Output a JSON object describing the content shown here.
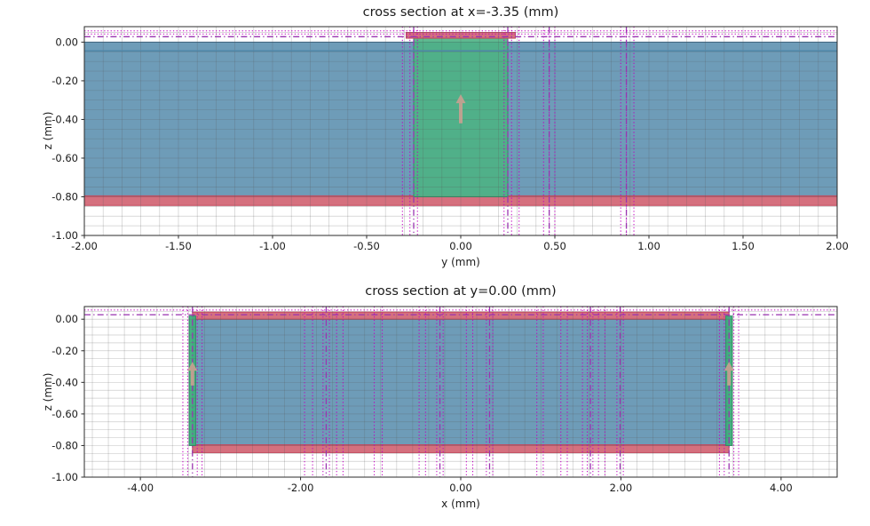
{
  "chart_data": [
    {
      "type": "cross_section_mesh_plot",
      "title": "cross section at x=-3.35 (mm)",
      "xlabel": "y (mm)",
      "ylabel": "z (mm)",
      "xlim": [
        -2.0,
        2.0
      ],
      "zlim": [
        -1.0,
        0.08
      ],
      "xticks": [
        -2.0,
        -1.5,
        -1.0,
        -0.5,
        0.0,
        0.5,
        1.0,
        1.5,
        2.0
      ],
      "zticks": [
        0.0,
        -0.2,
        -0.4,
        -0.6,
        -0.8,
        -1.0
      ],
      "grid": {
        "dx": 0.1,
        "dz": 0.05,
        "visible": true
      },
      "rects": [
        {
          "name": "substrate",
          "x0": -2.0,
          "x1": 2.0,
          "z0": -0.8,
          "z1": 0.0,
          "fill": "#4e86a8",
          "stroke": "#39688a",
          "opacity": 0.82
        },
        {
          "name": "bottom-metal",
          "x0": -2.0,
          "x1": 2.0,
          "z0": -0.845,
          "z1": -0.795,
          "fill": "#d06070",
          "stroke": "#c04a5e",
          "opacity": 0.9
        },
        {
          "name": "center-conductor",
          "x0": -0.25,
          "x1": 0.25,
          "z0": -0.8,
          "z1": 0.02,
          "fill": "#4cb384",
          "stroke": "#2f9066",
          "opacity": 0.9
        },
        {
          "name": "top-metal",
          "x0": -0.29,
          "x1": 0.29,
          "z0": 0.02,
          "z1": 0.05,
          "fill": "#d06070",
          "stroke": "#c04a5e",
          "opacity": 0.9
        }
      ],
      "hlines": [
        {
          "z": 0.058,
          "style": "dotted"
        },
        {
          "z": 0.042,
          "style": "dotted"
        },
        {
          "z": 0.028,
          "style": "dashdot"
        },
        {
          "z": -0.045,
          "style": "solid_blue"
        }
      ],
      "vlines": [
        {
          "x": -0.31,
          "style": "dotted"
        },
        {
          "x": -0.27,
          "style": "dotted"
        },
        {
          "x": -0.23,
          "style": "dotted"
        },
        {
          "x": -0.25,
          "style": "dashdot"
        },
        {
          "x": 0.23,
          "style": "dotted"
        },
        {
          "x": 0.27,
          "style": "dotted"
        },
        {
          "x": 0.31,
          "style": "dotted"
        },
        {
          "x": 0.25,
          "style": "dashdot"
        },
        {
          "x": 0.44,
          "style": "dotted"
        },
        {
          "x": 0.47,
          "style": "dotted"
        },
        {
          "x": 0.5,
          "style": "dotted"
        },
        {
          "x": 0.47,
          "style": "dashdot"
        },
        {
          "x": 0.85,
          "style": "dotted"
        },
        {
          "x": 0.88,
          "style": "dotted"
        },
        {
          "x": 0.92,
          "style": "dotted"
        },
        {
          "x": 0.88,
          "style": "dashdot"
        }
      ],
      "arrows": [
        {
          "x": 0.0,
          "z_tail": -0.42,
          "z_tip": -0.27
        }
      ]
    },
    {
      "type": "cross_section_mesh_plot",
      "title": "cross section at y=0.00 (mm)",
      "xlabel": "x (mm)",
      "ylabel": "z (mm)",
      "xlim": [
        -4.7,
        4.7
      ],
      "zlim": [
        -1.0,
        0.08
      ],
      "xticks": [
        -4.0,
        -2.0,
        0.0,
        2.0,
        4.0
      ],
      "zticks": [
        0.0,
        -0.2,
        -0.4,
        -0.6,
        -0.8,
        -1.0
      ],
      "grid": {
        "dx": 0.2,
        "dz": 0.05,
        "visible": true
      },
      "rects": [
        {
          "name": "substrate",
          "x0": -3.35,
          "x1": 3.35,
          "z0": -0.8,
          "z1": 0.0,
          "fill": "#4e86a8",
          "stroke": "#39688a",
          "opacity": 0.82
        },
        {
          "name": "bottom-metal",
          "x0": -3.35,
          "x1": 3.35,
          "z0": -0.845,
          "z1": -0.795,
          "fill": "#d06070",
          "stroke": "#c04a5e",
          "opacity": 0.9
        },
        {
          "name": "top-metal",
          "x0": -3.35,
          "x1": 3.35,
          "z0": 0.0,
          "z1": 0.045,
          "fill": "#d06070",
          "stroke": "#c04a5e",
          "opacity": 0.9
        },
        {
          "name": "left-port",
          "x0": -3.39,
          "x1": -3.31,
          "z0": -0.8,
          "z1": 0.02,
          "fill": "#3fae7c",
          "stroke": "#2f9066",
          "opacity": 0.95
        },
        {
          "name": "right-port",
          "x0": 3.31,
          "x1": 3.39,
          "z0": -0.8,
          "z1": 0.02,
          "fill": "#3fae7c",
          "stroke": "#2f9066",
          "opacity": 0.95
        }
      ],
      "hlines": [
        {
          "z": 0.058,
          "style": "dotted"
        },
        {
          "z": 0.028,
          "style": "dashdot"
        }
      ],
      "vlines": [
        {
          "x": -3.47,
          "style": "dotted"
        },
        {
          "x": -3.41,
          "style": "dotted"
        },
        {
          "x": -3.29,
          "style": "dotted"
        },
        {
          "x": -3.23,
          "style": "dotted"
        },
        {
          "x": -3.35,
          "style": "dashdot"
        },
        {
          "x": -1.95,
          "style": "dotted"
        },
        {
          "x": -1.85,
          "style": "dotted"
        },
        {
          "x": -1.72,
          "style": "dotted"
        },
        {
          "x": -1.64,
          "style": "dotted"
        },
        {
          "x": -1.55,
          "style": "dotted"
        },
        {
          "x": -1.47,
          "style": "dotted"
        },
        {
          "x": -1.68,
          "style": "dashdot"
        },
        {
          "x": -1.08,
          "style": "dotted"
        },
        {
          "x": -0.98,
          "style": "dotted"
        },
        {
          "x": -0.52,
          "style": "dotted"
        },
        {
          "x": -0.44,
          "style": "dotted"
        },
        {
          "x": -0.3,
          "style": "dotted"
        },
        {
          "x": -0.22,
          "style": "dotted"
        },
        {
          "x": -0.26,
          "style": "dashdot"
        },
        {
          "x": 0.07,
          "style": "dotted"
        },
        {
          "x": 0.15,
          "style": "dotted"
        },
        {
          "x": 0.32,
          "style": "dotted"
        },
        {
          "x": 0.4,
          "style": "dotted"
        },
        {
          "x": 0.36,
          "style": "dashdot"
        },
        {
          "x": 0.95,
          "style": "dotted"
        },
        {
          "x": 1.03,
          "style": "dotted"
        },
        {
          "x": 1.25,
          "style": "dotted"
        },
        {
          "x": 1.33,
          "style": "dotted"
        },
        {
          "x": 1.52,
          "style": "dotted"
        },
        {
          "x": 1.58,
          "style": "dotted"
        },
        {
          "x": 1.65,
          "style": "dotted"
        },
        {
          "x": 1.72,
          "style": "dotted"
        },
        {
          "x": 1.8,
          "style": "dotted"
        },
        {
          "x": 1.62,
          "style": "dashdot"
        },
        {
          "x": 1.95,
          "style": "dotted"
        },
        {
          "x": 2.03,
          "style": "dotted"
        },
        {
          "x": 1.99,
          "style": "dashdot"
        },
        {
          "x": 3.23,
          "style": "dotted"
        },
        {
          "x": 3.29,
          "style": "dotted"
        },
        {
          "x": 3.41,
          "style": "dotted"
        },
        {
          "x": 3.47,
          "style": "dotted"
        },
        {
          "x": 3.35,
          "style": "dashdot"
        }
      ],
      "arrows": [
        {
          "x": -3.35,
          "z_tail": -0.42,
          "z_tip": -0.27
        },
        {
          "x": 3.35,
          "z_tail": -0.42,
          "z_tip": -0.27
        }
      ]
    }
  ],
  "style": {
    "grid_color": "rgba(90,90,90,0.30)",
    "dotted_color": "#c000c0",
    "dashdot_color": "#9a35b0",
    "solid_blue_color": "#4e86a8",
    "arrow_color": "#c7a191",
    "spine_color": "#2b2b2b",
    "text_color": "#1a1a1a",
    "background": "#ffffff"
  }
}
